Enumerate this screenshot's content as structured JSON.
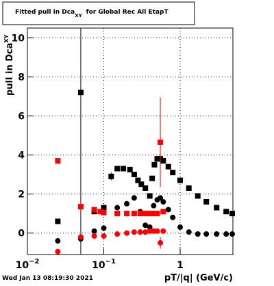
{
  "chart_data": {
    "type": "scatter",
    "title": [
      "Fitted pull in Dca",
      "XY",
      "for Global Rec All EtapT"
    ],
    "y_label": [
      "pull in Dca",
      "XY"
    ],
    "x_label": "pT/|q| (GeV/c)",
    "footer": "Wed Jan 13 08:19:30 2021",
    "log_x": true,
    "grid": true,
    "xlim": [
      0.01,
      4.9
    ],
    "ylim": [
      -1.1,
      10.5
    ],
    "xticks": [
      {
        "value": 0.01,
        "label": "10",
        "sup": "−2"
      },
      {
        "value": 0.1,
        "label": "10",
        "sup": "−1"
      },
      1
    ],
    "yticks": [
      0,
      2,
      4,
      6,
      8,
      10
    ],
    "series": [
      {
        "marker": "square",
        "color": "#000000",
        "x": [
          0.025,
          0.05,
          0.075,
          0.1,
          0.125,
          0.15,
          0.18,
          0.22,
          0.25,
          0.28,
          0.31,
          0.35,
          0.4,
          0.43,
          0.46,
          0.5,
          0.55,
          0.6,
          0.7,
          0.8,
          1.0,
          1.3,
          1.7,
          2.2,
          3.0,
          4.0,
          4.8
        ],
        "values": [
          0.6,
          7.2,
          1.1,
          1.3,
          2.9,
          3.3,
          3.3,
          3.25,
          3.0,
          2.7,
          2.5,
          2.3,
          1.9,
          2.8,
          3.5,
          3.8,
          3.8,
          3.7,
          3.4,
          3.1,
          2.7,
          2.3,
          1.9,
          1.6,
          1.3,
          1.1,
          1.0
        ],
        "yerr": [
          0,
          10,
          0,
          0,
          0.2,
          0,
          0,
          0,
          0,
          0,
          0,
          0,
          0,
          0,
          0,
          0,
          0,
          0,
          0,
          0,
          0,
          0,
          0,
          0,
          0,
          0,
          0
        ]
      },
      {
        "marker": "circle",
        "color": "#000000",
        "x": [
          0.025,
          0.05,
          0.075,
          0.1,
          0.15,
          0.2,
          0.25,
          0.3,
          0.35,
          0.4,
          0.45,
          0.5,
          0.55,
          0.6,
          0.7,
          0.8,
          1.0,
          1.3,
          1.7,
          2.2,
          3.0,
          4.0,
          4.8
        ],
        "values": [
          -0.4,
          -0.3,
          0.1,
          0.25,
          1.3,
          1.5,
          1.8,
          1.1,
          0.4,
          0.3,
          1.4,
          1.7,
          1.8,
          1.6,
          1.2,
          0.8,
          0.3,
          0.05,
          -0.05,
          -0.05,
          -0.05,
          -0.05,
          -0.05
        ],
        "yerr": [
          0,
          0.2,
          0,
          0,
          0,
          0,
          0,
          0,
          0,
          0,
          0,
          0,
          0,
          0,
          0,
          0,
          0,
          0,
          0,
          0,
          0,
          0,
          0
        ]
      },
      {
        "marker": "square",
        "color": "#ff0000",
        "x": [
          0.025,
          0.05,
          0.075,
          0.09,
          0.1,
          0.15,
          0.2,
          0.25,
          0.3,
          0.35,
          0.4,
          0.45,
          0.5,
          0.55,
          0.6
        ],
        "values": [
          3.7,
          1.35,
          1.2,
          1.1,
          1.05,
          1.0,
          1.0,
          1.0,
          1.0,
          1.0,
          1.0,
          1.0,
          1.0,
          4.65,
          1.1
        ],
        "yerr": [
          0,
          0,
          0,
          0,
          0,
          0,
          0,
          0,
          0,
          0,
          0,
          0,
          0,
          2.3,
          0
        ]
      },
      {
        "marker": "circle",
        "color": "#ff0000",
        "x": [
          0.025,
          0.05,
          0.075,
          0.1,
          0.15,
          0.2,
          0.25,
          0.3,
          0.35,
          0.4,
          0.45,
          0.5,
          0.55,
          0.6
        ],
        "values": [
          -0.95,
          -0.2,
          -0.15,
          -0.15,
          -0.05,
          0.0,
          0.05,
          0.05,
          0.05,
          0.1,
          0.1,
          0.1,
          -0.5,
          0.1
        ],
        "yerr": [
          0,
          0,
          0,
          0,
          0,
          0,
          0,
          0,
          0,
          0,
          0,
          0,
          0.3,
          0
        ]
      }
    ]
  }
}
